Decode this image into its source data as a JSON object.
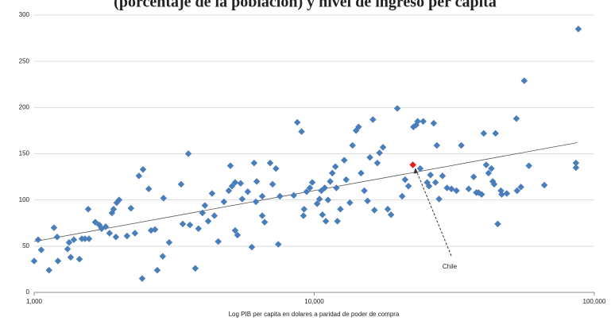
{
  "chart_data": {
    "type": "scatter",
    "title": "(porcentaje de la poblacion) y nivel de ingreso per capita",
    "xlabel": "Log PIB per capita en dolares a paridad de poder de compra",
    "xscale": "log",
    "xlim": [
      1000,
      100000
    ],
    "xticks": [
      {
        "value": 1000,
        "label": "1,000"
      },
      {
        "value": 10000,
        "label": "10,000"
      },
      {
        "value": 100000,
        "label": "100,000"
      }
    ],
    "ylim": [
      0,
      300
    ],
    "yticks": [
      0,
      50,
      100,
      150,
      200,
      250,
      300
    ],
    "grid": true,
    "series": [
      {
        "color": "#4a7ebb",
        "x": [
          1000,
          1033,
          1060,
          1130,
          1177,
          1208,
          1216,
          1316,
          1333,
          1350,
          1386,
          1451,
          1480,
          1518,
          1559,
          1570,
          1653,
          1708,
          1742,
          1800,
          1858,
          1896,
          1921,
          1971,
          2010,
          1958,
          2146,
          2216,
          2290,
          2366,
          2447,
          2430,
          2565,
          2615,
          2701,
          2752,
          2878,
          2896,
          3034,
          3346,
          3393,
          3552,
          3598,
          3762,
          3860,
          3990,
          4070,
          4183,
          4317,
          4400,
          4542,
          4760,
          4953,
          5020,
          5087,
          5220,
          5220,
          5320,
          5460,
          5530,
          5790,
          5985,
          6100,
          6190,
          6230,
          6520,
          6520,
          6650,
          6960,
          7100,
          7300,
          7440,
          7540,
          8450,
          8700,
          9010,
          9200,
          9150,
          9390,
          9650,
          9840,
          10240,
          10440,
          10600,
          10700,
          10900,
          11000,
          11200,
          11400,
          11600,
          11900,
          12000,
          12100,
          12400,
          12800,
          13000,
          13400,
          13700,
          14100,
          14400,
          14700,
          15100,
          15500,
          15800,
          16200,
          16400,
          16800,
          17100,
          17600,
          18300,
          18800,
          19800,
          20600,
          21100,
          21700,
          22600,
          23100,
          23400,
          23900,
          24500,
          25300,
          25700,
          26000,
          26700,
          27100,
          27400,
          27900,
          28700,
          29800,
          30900,
          32200,
          33500,
          35600,
          37100,
          37900,
          38600,
          39600,
          40300,
          41100,
          41900,
          42900,
          43400,
          43900,
          44400,
          45200,
          46400,
          46700,
          48700,
          52700,
          53000,
          54700,
          56200,
          58400,
          66300,
          86000,
          86000,
          87700
        ],
        "y": [
          34,
          57,
          46,
          24,
          70,
          60,
          34,
          47,
          54,
          38,
          57,
          36,
          58,
          58,
          90,
          58,
          76,
          73,
          69,
          71,
          64,
          86,
          90,
          97,
          100,
          60,
          61,
          91,
          64,
          126,
          133,
          15,
          112,
          67,
          68,
          24,
          39,
          102,
          54,
          117,
          74,
          150,
          73,
          26,
          69,
          86,
          94,
          77,
          107,
          83,
          55,
          98,
          110,
          137,
          115,
          119,
          67,
          62,
          118,
          101,
          109,
          49,
          140,
          98,
          120,
          104,
          83,
          76,
          140,
          117,
          134,
          52,
          104,
          105,
          184,
          174,
          90,
          83,
          109,
          113,
          119,
          96,
          101,
          110,
          84,
          113,
          77,
          100,
          120,
          129,
          136,
          113,
          77,
          90,
          143,
          122,
          97,
          159,
          175,
          179,
          129,
          110,
          99,
          146,
          187,
          89,
          140,
          151,
          157,
          90,
          84,
          199,
          104,
          122,
          115,
          179,
          181,
          185,
          134,
          185,
          119,
          115,
          127,
          183,
          119,
          159,
          101,
          126,
          113,
          112,
          110,
          159,
          112,
          125,
          108,
          108,
          106,
          172,
          138,
          129,
          134,
          120,
          117,
          172,
          74,
          110,
          106,
          107,
          188,
          110,
          114,
          229,
          137,
          116,
          140,
          135,
          285
        ]
      },
      {
        "name": "Chile",
        "color": "#e0201a",
        "x": [
          22500
        ],
        "y": [
          138
        ]
      }
    ],
    "trendline": {
      "x": [
        1000,
        87000
      ],
      "y": [
        55,
        162
      ]
    }
  }
}
